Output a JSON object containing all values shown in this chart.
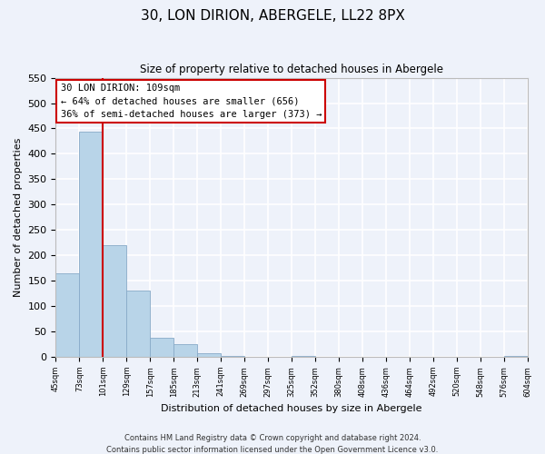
{
  "title": "30, LON DIRION, ABERGELE, LL22 8PX",
  "subtitle": "Size of property relative to detached houses in Abergele",
  "bar_values": [
    165,
    443,
    220,
    130,
    37,
    26,
    8,
    2,
    0,
    0,
    2,
    0,
    0,
    0,
    0,
    0,
    0,
    0,
    0,
    2
  ],
  "bin_labels": [
    "45sqm",
    "73sqm",
    "101sqm",
    "129sqm",
    "157sqm",
    "185sqm",
    "213sqm",
    "241sqm",
    "269sqm",
    "297sqm",
    "325sqm",
    "352sqm",
    "380sqm",
    "408sqm",
    "436sqm",
    "464sqm",
    "492sqm",
    "520sqm",
    "548sqm",
    "576sqm",
    "604sqm"
  ],
  "bar_color": "#b8d4e8",
  "bar_edge_color": "#88aac8",
  "vline_color": "#cc0000",
  "annotation_title": "30 LON DIRION: 109sqm",
  "annotation_line1": "← 64% of detached houses are smaller (656)",
  "annotation_line2": "36% of semi-detached houses are larger (373) →",
  "annotation_box_color": "white",
  "annotation_box_edge": "#cc0000",
  "ylabel": "Number of detached properties",
  "xlabel": "Distribution of detached houses by size in Abergele",
  "ylim": [
    0,
    550
  ],
  "yticks": [
    0,
    50,
    100,
    150,
    200,
    250,
    300,
    350,
    400,
    450,
    500,
    550
  ],
  "footer_line1": "Contains HM Land Registry data © Crown copyright and database right 2024.",
  "footer_line2": "Contains public sector information licensed under the Open Government Licence v3.0.",
  "bg_color": "#eef2fa",
  "grid_color": "white"
}
